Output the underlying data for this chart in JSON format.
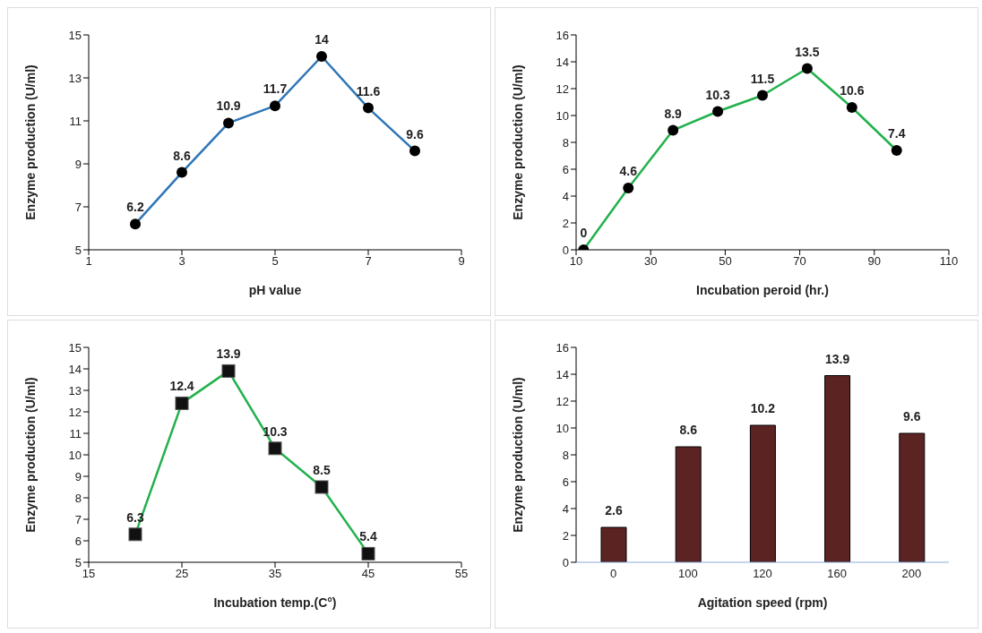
{
  "chart_data": [
    {
      "type": "line",
      "xlabel": "pH value",
      "ylabel": "Enzyme production (U/ml)",
      "x": [
        2,
        3,
        4,
        5,
        6,
        7,
        8
      ],
      "series": [
        {
          "color": "#2e75b6",
          "values": [
            6.2,
            8.6,
            10.9,
            11.7,
            14,
            11.6,
            9.6
          ]
        }
      ],
      "xlim": [
        1,
        9
      ],
      "xticks": [
        1,
        3,
        5,
        7,
        9
      ],
      "ylim": [
        5,
        15
      ],
      "yticks": [
        5,
        7,
        9,
        11,
        13,
        15
      ],
      "marker": "circle",
      "data_labels": true
    },
    {
      "type": "line",
      "xlabel": "Incubation peroid (hr.)",
      "ylabel": "Enzyme production (U/ml)",
      "x": [
        12,
        24,
        36,
        48,
        60,
        72,
        84,
        96
      ],
      "series": [
        {
          "color": "#22b14c",
          "values": [
            0,
            4.6,
            8.9,
            10.3,
            11.5,
            13.5,
            10.6,
            7.4
          ]
        }
      ],
      "xlim": [
        10,
        110
      ],
      "xticks": [
        10,
        30,
        50,
        70,
        90,
        110
      ],
      "ylim": [
        0,
        16
      ],
      "yticks": [
        0,
        2,
        4,
        6,
        8,
        10,
        12,
        14,
        16
      ],
      "marker": "circle",
      "data_labels": true
    },
    {
      "type": "line",
      "xlabel": "Incubation temp.(C°)",
      "ylabel": "Enzyme production (U/ml)",
      "x": [
        20,
        25,
        30,
        35,
        40,
        45
      ],
      "series": [
        {
          "color": "#22b14c",
          "values": [
            6.3,
            12.4,
            13.9,
            10.3,
            8.5,
            5.4
          ]
        }
      ],
      "xlim": [
        15,
        55
      ],
      "xticks": [
        15,
        25,
        35,
        45,
        55
      ],
      "ylim": [
        5,
        15
      ],
      "yticks": [
        5,
        6,
        7,
        8,
        9,
        10,
        11,
        12,
        13,
        14,
        15
      ],
      "marker": "square",
      "data_labels": true
    },
    {
      "type": "bar",
      "xlabel": "Agitation speed (rpm)",
      "ylabel": "Enzyme production (U/ml)",
      "categories": [
        "0",
        "100",
        "120",
        "160",
        "200"
      ],
      "series": [
        {
          "color": "#5c2323",
          "values": [
            2.6,
            8.6,
            10.2,
            13.9,
            9.6
          ]
        }
      ],
      "ylim": [
        0,
        16
      ],
      "yticks": [
        0,
        2,
        4,
        6,
        8,
        10,
        12,
        14,
        16
      ],
      "data_labels": true
    }
  ]
}
